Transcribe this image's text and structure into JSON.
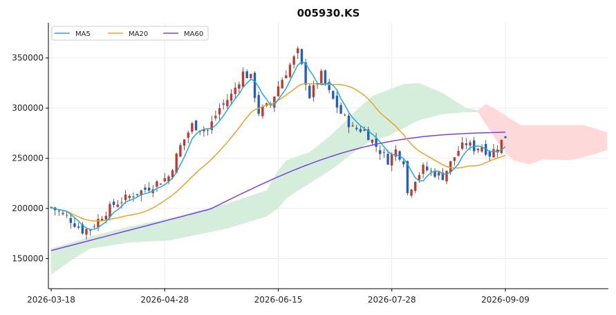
{
  "chart_data": {
    "type": "candlestick",
    "title": "005930.KS",
    "xlabel": "",
    "ylabel": "",
    "ylim": [
      120000,
      385000
    ],
    "yticks": [
      150000,
      200000,
      250000,
      300000,
      350000
    ],
    "ytick_labels": [
      "150000",
      "200000",
      "250000",
      "300000",
      "350000"
    ],
    "xticks": [
      {
        "label": "2026-03-18",
        "index": 0
      },
      {
        "label": "2026-04-28",
        "index": 29
      },
      {
        "label": "2026-06-15",
        "index": 58
      },
      {
        "label": "2026-07-28",
        "index": 87
      },
      {
        "label": "2026-09-09",
        "index": 116
      }
    ],
    "n_bars": 117,
    "future_bars": 26,
    "grid": true,
    "legend_position": "top-left",
    "colors": {
      "up": "#c0392b",
      "down": "#1f5fbf",
      "ma5": "#1ea7e0",
      "ma20": "#f0a020",
      "ma60": "#7b3fe4",
      "cloud_bull": "#d5eedb",
      "cloud_bear": "#fdd9da"
    },
    "legend": [
      "MA5",
      "MA20",
      "MA60"
    ],
    "price_keypoints": [
      [
        0,
        201000
      ],
      [
        4,
        192000
      ],
      [
        8,
        178000
      ],
      [
        10,
        180000
      ],
      [
        13,
        193000
      ],
      [
        16,
        204000
      ],
      [
        20,
        212000
      ],
      [
        24,
        219000
      ],
      [
        30,
        232000
      ],
      [
        33,
        262000
      ],
      [
        36,
        283000
      ],
      [
        40,
        278000
      ],
      [
        43,
        300000
      ],
      [
        46,
        313000
      ],
      [
        49,
        335000
      ],
      [
        51,
        330000
      ],
      [
        53,
        296000
      ],
      [
        56,
        304000
      ],
      [
        58,
        322000
      ],
      [
        61,
        343000
      ],
      [
        63,
        356000
      ],
      [
        66,
        312000
      ],
      [
        69,
        333000
      ],
      [
        71,
        315000
      ],
      [
        74,
        295000
      ],
      [
        77,
        280000
      ],
      [
        80,
        278000
      ],
      [
        83,
        262000
      ],
      [
        86,
        248000
      ],
      [
        88,
        258000
      ],
      [
        90,
        248000
      ],
      [
        91,
        215000
      ],
      [
        93,
        230000
      ],
      [
        95,
        240000
      ],
      [
        98,
        235000
      ],
      [
        100,
        232000
      ],
      [
        102,
        245000
      ],
      [
        104,
        258000
      ],
      [
        106,
        265000
      ],
      [
        108,
        260000
      ],
      [
        110,
        262000
      ],
      [
        112,
        254000
      ],
      [
        114,
        262000
      ],
      [
        116,
        272000
      ]
    ],
    "ma60_start": 158000,
    "ma60_end": 276000,
    "cloud_bull_keypoints": {
      "upper": [
        [
          0,
          160000
        ],
        [
          5,
          166000
        ],
        [
          10,
          172000
        ],
        [
          20,
          182000
        ],
        [
          30,
          190000
        ],
        [
          45,
          205000
        ],
        [
          55,
          218000
        ],
        [
          58,
          238000
        ],
        [
          60,
          248000
        ],
        [
          66,
          256000
        ],
        [
          72,
          275000
        ],
        [
          78,
          298000
        ],
        [
          82,
          312000
        ],
        [
          86,
          318000
        ],
        [
          90,
          324000
        ],
        [
          94,
          325000
        ],
        [
          100,
          315000
        ],
        [
          106,
          300000
        ],
        [
          109,
          298000
        ]
      ],
      "lower": [
        [
          0,
          134000
        ],
        [
          5,
          148000
        ],
        [
          10,
          160000
        ],
        [
          20,
          166000
        ],
        [
          30,
          168000
        ],
        [
          45,
          180000
        ],
        [
          55,
          192000
        ],
        [
          58,
          200000
        ],
        [
          60,
          210000
        ],
        [
          66,
          225000
        ],
        [
          72,
          240000
        ],
        [
          78,
          258000
        ],
        [
          82,
          268000
        ],
        [
          86,
          272000
        ],
        [
          90,
          280000
        ],
        [
          94,
          288000
        ],
        [
          100,
          294000
        ],
        [
          106,
          296000
        ],
        [
          109,
          296000
        ]
      ]
    },
    "cloud_bear_keypoints": {
      "upper": [
        [
          109,
          298000
        ],
        [
          111,
          304000
        ],
        [
          114,
          298000
        ],
        [
          117,
          290000
        ],
        [
          120,
          283000
        ],
        [
          126,
          283000
        ],
        [
          132,
          283000
        ],
        [
          136,
          283000
        ],
        [
          142,
          276000
        ]
      ],
      "lower": [
        [
          109,
          296000
        ],
        [
          112,
          278000
        ],
        [
          115,
          260000
        ],
        [
          118,
          248000
        ],
        [
          122,
          244000
        ],
        [
          126,
          249000
        ],
        [
          132,
          248000
        ],
        [
          136,
          251000
        ],
        [
          142,
          258000
        ]
      ]
    }
  }
}
